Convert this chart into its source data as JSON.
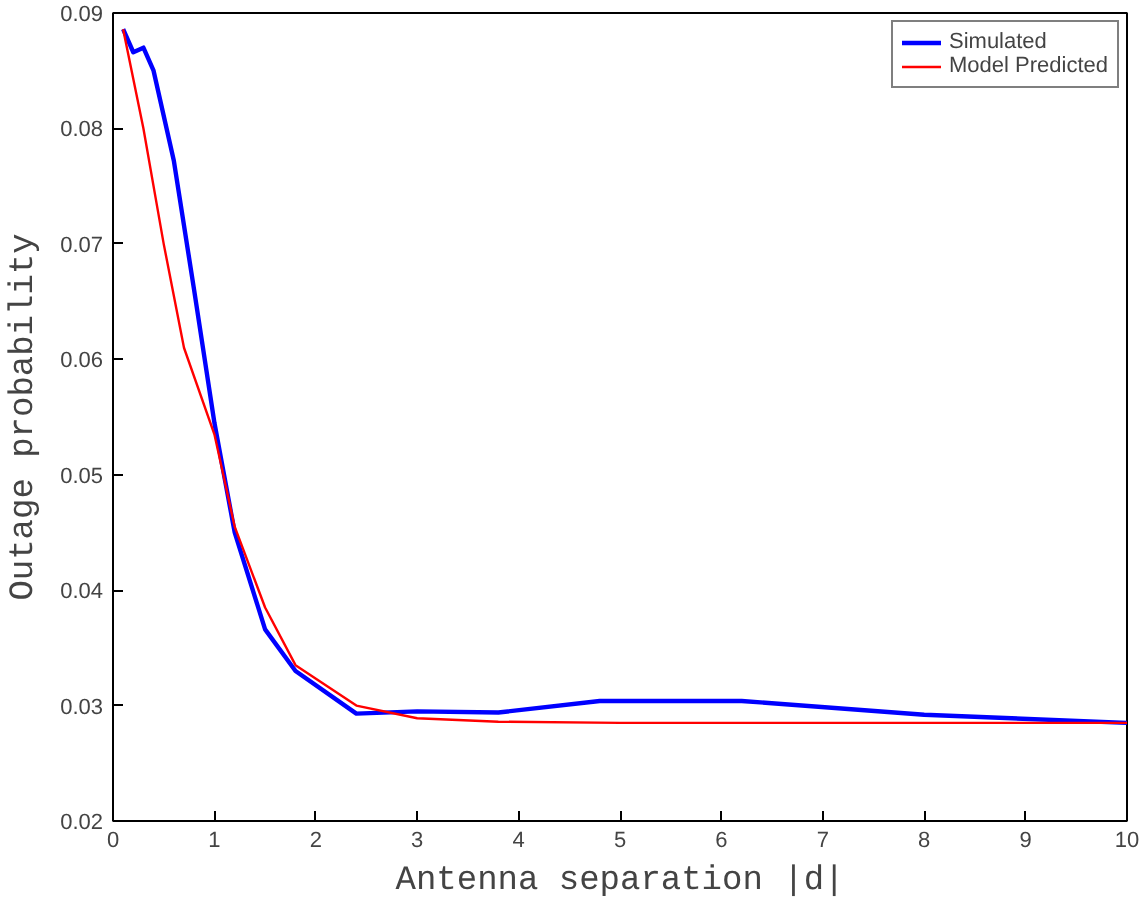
{
  "chart_data": {
    "type": "line",
    "xlabel": "Antenna separation |d|",
    "ylabel": "Outage probability",
    "xlim": [
      0,
      10
    ],
    "ylim": [
      0.02,
      0.09
    ],
    "xticks": [
      0,
      1,
      2,
      3,
      4,
      5,
      6,
      7,
      8,
      9,
      10
    ],
    "yticks": [
      0.02,
      0.03,
      0.04,
      0.05,
      0.06,
      0.07,
      0.08,
      0.09
    ],
    "grid": false,
    "legend": "top right",
    "marker": "none",
    "line_style": "solid",
    "series": [
      {
        "name": "Simulated",
        "color": "#0000ff",
        "x": [
          0.1,
          0.2,
          0.3,
          0.4,
          0.6,
          0.8,
          1.0,
          1.2,
          1.5,
          1.8,
          2.4,
          3.0,
          3.8,
          4.8,
          6.2,
          8.0,
          10
        ],
        "values": [
          0.0886,
          0.0866,
          0.087,
          0.085,
          0.0772,
          0.066,
          0.0545,
          0.045,
          0.0366,
          0.033,
          0.0293,
          0.0295,
          0.0294,
          0.0304,
          0.0304,
          0.0292,
          0.0285
        ]
      },
      {
        "name": "Model Predicted",
        "color": "#ff0000",
        "x": [
          0.1,
          0.3,
          0.5,
          0.7,
          1.0,
          1.2,
          1.5,
          1.8,
          2.4,
          3.0,
          3.8,
          5.0,
          10
        ],
        "values": [
          0.0886,
          0.08,
          0.07,
          0.061,
          0.0535,
          0.0455,
          0.0385,
          0.0335,
          0.03,
          0.0289,
          0.0286,
          0.0285,
          0.0285
        ]
      }
    ]
  }
}
